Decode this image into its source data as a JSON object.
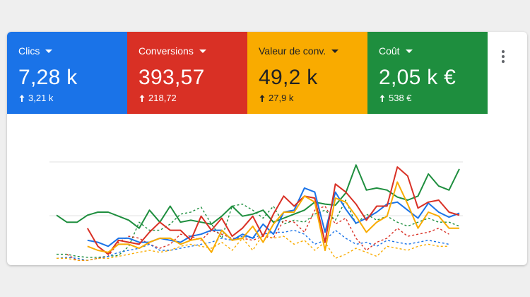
{
  "metrics": [
    {
      "label": "Clics",
      "value": "7,28 k",
      "delta": "3,21 k",
      "color": "#1a73e8",
      "text_color": "#ffffff"
    },
    {
      "label": "Conversions",
      "value": "393,57",
      "delta": "218,72",
      "color": "#d93025",
      "text_color": "#ffffff"
    },
    {
      "label": "Valeur de conv.",
      "value": "49,2 k",
      "delta": "27,9 k",
      "color": "#f9ab00",
      "text_color": "#202124"
    },
    {
      "label": "Coût",
      "value": "2,05 k €",
      "delta": "538 €",
      "color": "#1e8e3e",
      "text_color": "#ffffff"
    }
  ],
  "icons": {
    "dropdown": "chevron-down-icon",
    "delta": "arrow-up-icon",
    "more": "more-vertical-icon"
  },
  "chart_data": {
    "type": "line",
    "grid": true,
    "ylim": [
      0,
      100
    ],
    "x": [
      1,
      2,
      3,
      4,
      5,
      6,
      7,
      8,
      9,
      10,
      11,
      12,
      13,
      14,
      15,
      16,
      17,
      18,
      19,
      20,
      21,
      22,
      23,
      24,
      25,
      26,
      27,
      28,
      29,
      30,
      31,
      32,
      33,
      34,
      35,
      36,
      37,
      38,
      39,
      40
    ],
    "series": [
      {
        "color": "#1e8e3e",
        "dashed": false,
        "values": [
          47,
          40,
          40,
          47,
          50,
          50,
          46,
          42,
          34,
          52,
          40,
          56,
          40,
          42,
          40,
          38,
          46,
          56,
          46,
          48,
          52,
          40,
          44,
          48,
          52,
          60,
          58,
          57,
          69,
          97,
          72,
          74,
          72,
          65,
          62,
          66,
          88,
          76,
          72,
          93
        ]
      },
      {
        "color": "#1a73e8",
        "dashed": false,
        "values": [
          null,
          null,
          null,
          22,
          20,
          16,
          24,
          24,
          20,
          20,
          24,
          22,
          20,
          26,
          28,
          32,
          32,
          22,
          28,
          24,
          38,
          28,
          50,
          52,
          74,
          70,
          30,
          70,
          53,
          39,
          44,
          50,
          58,
          60,
          52,
          44,
          59,
          50,
          45,
          49
        ]
      },
      {
        "color": "#d93025",
        "dashed": false,
        "values": [
          null,
          null,
          null,
          34,
          16,
          8,
          22,
          20,
          18,
          30,
          40,
          32,
          32,
          22,
          46,
          32,
          44,
          26,
          34,
          46,
          26,
          48,
          66,
          56,
          66,
          64,
          20,
          78,
          70,
          58,
          42,
          56,
          56,
          95,
          86,
          54,
          60,
          62,
          50,
          47
        ]
      },
      {
        "color": "#f9ab00",
        "dashed": false,
        "values": [
          null,
          null,
          null,
          16,
          12,
          10,
          18,
          18,
          14,
          20,
          24,
          24,
          18,
          22,
          24,
          10,
          32,
          22,
          24,
          36,
          20,
          38,
          50,
          50,
          66,
          60,
          12,
          64,
          60,
          46,
          30,
          40,
          46,
          80,
          58,
          34,
          50,
          46,
          34,
          34
        ]
      },
      {
        "color": "#1e8e3e",
        "dashed": true,
        "values": [
          8,
          8,
          6,
          5,
          5,
          6,
          7,
          16,
          40,
          32,
          32,
          38,
          48,
          50,
          55,
          38,
          24,
          56,
          58,
          52,
          44,
          56,
          38,
          42,
          40,
          48,
          52,
          42,
          62,
          38,
          48,
          42,
          46,
          40,
          36,
          40,
          44,
          40,
          40,
          36
        ]
      },
      {
        "color": "#d93025",
        "dashed": true,
        "values": [
          null,
          8,
          2,
          2,
          4,
          6,
          20,
          26,
          24,
          18,
          14,
          18,
          28,
          26,
          22,
          32,
          28,
          24,
          24,
          22,
          26,
          24,
          42,
          40,
          30,
          52,
          56,
          38,
          44,
          24,
          12,
          20,
          24,
          34,
          26,
          28,
          30,
          34,
          28,
          null
        ]
      },
      {
        "color": "#1a73e8",
        "dashed": true,
        "values": [
          4,
          5,
          4,
          2,
          4,
          6,
          10,
          12,
          14,
          18,
          12,
          12,
          14,
          16,
          18,
          20,
          24,
          22,
          26,
          24,
          28,
          30,
          30,
          32,
          28,
          18,
          22,
          32,
          24,
          18,
          20,
          16,
          22,
          20,
          18,
          20,
          22,
          20,
          18,
          null
        ]
      },
      {
        "color": "#f9ab00",
        "dashed": true,
        "values": [
          4,
          4,
          2,
          2,
          4,
          4,
          6,
          8,
          10,
          12,
          10,
          12,
          16,
          18,
          16,
          14,
          20,
          12,
          24,
          12,
          28,
          24,
          26,
          18,
          22,
          12,
          20,
          4,
          8,
          14,
          10,
          6,
          16,
          14,
          12,
          16,
          18,
          16,
          16,
          null
        ]
      }
    ]
  }
}
